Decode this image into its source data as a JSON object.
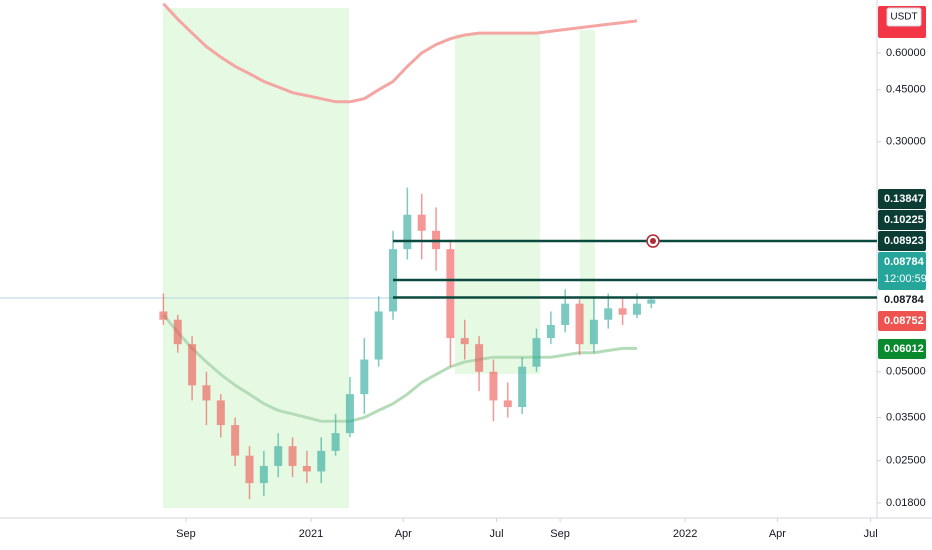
{
  "chart_data": {
    "type": "candlestick",
    "currency": "USDT",
    "log_scale": true,
    "ylim": [
      0.016,
      0.906
    ],
    "yticks": [
      {
        "value": 0.018,
        "label": "0.01800"
      },
      {
        "value": 0.025,
        "label": "0.02500"
      },
      {
        "value": 0.035,
        "label": "0.03500"
      },
      {
        "value": 0.05,
        "label": "0.05000"
      },
      {
        "value": 0.3,
        "label": "0.30000"
      },
      {
        "value": 0.45,
        "label": "0.45000"
      },
      {
        "value": 0.6,
        "label": "0.60000"
      }
    ],
    "xticks": [
      {
        "value": "2020-09-01",
        "label": "Sep"
      },
      {
        "value": "2021-01-01",
        "label": "2021"
      },
      {
        "value": "2021-04-01",
        "label": "Apr"
      },
      {
        "value": "2021-07-01",
        "label": "Jul"
      },
      {
        "value": "2021-09-01",
        "label": "Sep"
      },
      {
        "value": "2022-01-01",
        "label": "2022"
      },
      {
        "value": "2022-04-01",
        "label": "Apr"
      },
      {
        "value": "2022-07-01",
        "label": "Jul"
      }
    ],
    "up_color": "#26a69a",
    "down_color": "#ef5350",
    "candles": [
      {
        "x": "2020-08-10",
        "open": 0.08,
        "high": 0.092,
        "low": 0.072,
        "close": 0.075
      },
      {
        "x": "2020-08-24",
        "open": 0.075,
        "high": 0.078,
        "low": 0.058,
        "close": 0.062
      },
      {
        "x": "2020-09-07",
        "open": 0.062,
        "high": 0.066,
        "low": 0.04,
        "close": 0.045
      },
      {
        "x": "2020-09-21",
        "open": 0.045,
        "high": 0.05,
        "low": 0.033,
        "close": 0.04
      },
      {
        "x": "2020-10-05",
        "open": 0.04,
        "high": 0.042,
        "low": 0.03,
        "close": 0.033
      },
      {
        "x": "2020-10-19",
        "open": 0.033,
        "high": 0.035,
        "low": 0.024,
        "close": 0.026
      },
      {
        "x": "2020-11-02",
        "open": 0.026,
        "high": 0.028,
        "low": 0.0185,
        "close": 0.021
      },
      {
        "x": "2020-11-16",
        "open": 0.021,
        "high": 0.027,
        "low": 0.019,
        "close": 0.024
      },
      {
        "x": "2020-11-30",
        "open": 0.024,
        "high": 0.031,
        "low": 0.022,
        "close": 0.028
      },
      {
        "x": "2020-12-14",
        "open": 0.028,
        "high": 0.03,
        "low": 0.022,
        "close": 0.024
      },
      {
        "x": "2020-12-28",
        "open": 0.024,
        "high": 0.027,
        "low": 0.021,
        "close": 0.023
      },
      {
        "x": "2021-01-11",
        "open": 0.023,
        "high": 0.03,
        "low": 0.021,
        "close": 0.027
      },
      {
        "x": "2021-01-25",
        "open": 0.027,
        "high": 0.036,
        "low": 0.026,
        "close": 0.031
      },
      {
        "x": "2021-02-08",
        "open": 0.031,
        "high": 0.048,
        "low": 0.03,
        "close": 0.042
      },
      {
        "x": "2021-02-22",
        "open": 0.042,
        "high": 0.065,
        "low": 0.036,
        "close": 0.055
      },
      {
        "x": "2021-03-08",
        "open": 0.055,
        "high": 0.09,
        "low": 0.052,
        "close": 0.08
      },
      {
        "x": "2021-03-22",
        "open": 0.08,
        "high": 0.15,
        "low": 0.075,
        "close": 0.13
      },
      {
        "x": "2021-04-05",
        "open": 0.13,
        "high": 0.21,
        "low": 0.12,
        "close": 0.17
      },
      {
        "x": "2021-04-19",
        "open": 0.17,
        "high": 0.2,
        "low": 0.12,
        "close": 0.15
      },
      {
        "x": "2021-05-03",
        "open": 0.15,
        "high": 0.18,
        "low": 0.11,
        "close": 0.13
      },
      {
        "x": "2021-05-17",
        "open": 0.13,
        "high": 0.14,
        "low": 0.052,
        "close": 0.065
      },
      {
        "x": "2021-05-31",
        "open": 0.065,
        "high": 0.075,
        "low": 0.055,
        "close": 0.062
      },
      {
        "x": "2021-06-14",
        "open": 0.062,
        "high": 0.066,
        "low": 0.043,
        "close": 0.05
      },
      {
        "x": "2021-06-28",
        "open": 0.05,
        "high": 0.055,
        "low": 0.034,
        "close": 0.04
      },
      {
        "x": "2021-07-12",
        "open": 0.04,
        "high": 0.046,
        "low": 0.035,
        "close": 0.038
      },
      {
        "x": "2021-07-26",
        "open": 0.038,
        "high": 0.056,
        "low": 0.036,
        "close": 0.052
      },
      {
        "x": "2021-08-09",
        "open": 0.052,
        "high": 0.07,
        "low": 0.05,
        "close": 0.065
      },
      {
        "x": "2021-08-23",
        "open": 0.065,
        "high": 0.08,
        "low": 0.062,
        "close": 0.072
      },
      {
        "x": "2021-09-06",
        "open": 0.072,
        "high": 0.095,
        "low": 0.068,
        "close": 0.085
      },
      {
        "x": "2021-09-20",
        "open": 0.085,
        "high": 0.088,
        "low": 0.057,
        "close": 0.062
      },
      {
        "x": "2021-10-04",
        "open": 0.062,
        "high": 0.09,
        "low": 0.058,
        "close": 0.075
      },
      {
        "x": "2021-10-18",
        "open": 0.075,
        "high": 0.092,
        "low": 0.07,
        "close": 0.082
      },
      {
        "x": "2021-11-01",
        "open": 0.082,
        "high": 0.09,
        "low": 0.072,
        "close": 0.078
      },
      {
        "x": "2021-11-15",
        "open": 0.078,
        "high": 0.092,
        "low": 0.076,
        "close": 0.085
      },
      {
        "x": "2021-11-29",
        "open": 0.085,
        "high": 0.09,
        "low": 0.082,
        "close": 0.08784
      }
    ],
    "moving_averages": [
      {
        "color": "#f4a6a3",
        "values": [
          0.88,
          0.78,
          0.7,
          0.63,
          0.58,
          0.54,
          0.51,
          0.48,
          0.46,
          0.44,
          0.43,
          0.42,
          0.41,
          0.41,
          0.42,
          0.45,
          0.48,
          0.54,
          0.6,
          0.64,
          0.67,
          0.69,
          0.7,
          0.7,
          0.7,
          0.7,
          0.7,
          0.71,
          0.72,
          0.73,
          0.74,
          0.75,
          0.76,
          0.77,
          null
        ]
      },
      {
        "color": "#b5dcb8",
        "values": [
          0.078,
          0.068,
          0.06,
          0.054,
          0.049,
          0.045,
          0.042,
          0.039,
          0.037,
          0.036,
          0.035,
          0.034,
          0.034,
          0.034,
          0.035,
          0.037,
          0.039,
          0.042,
          0.046,
          0.049,
          0.052,
          0.054,
          0.055,
          0.056,
          0.056,
          0.056,
          0.056,
          0.056,
          0.057,
          0.058,
          0.058,
          0.059,
          0.06,
          0.06,
          null
        ]
      }
    ],
    "horizontal_lines": {
      "color": "#0b4a3f",
      "values": [
        0.13847,
        0.10225,
        0.08923
      ]
    },
    "price_labels": [
      {
        "value": 0.13847,
        "color": "#0b3d35"
      },
      {
        "value": 0.10225,
        "color": "#0b3d35"
      },
      {
        "value": 0.08923,
        "color": "#0b3d35"
      },
      {
        "value": 0.08784,
        "color": "#26a69a",
        "countdown": "12:00:59"
      },
      {
        "value": 0.08784,
        "color": "#ffffff"
      },
      {
        "value": 0.08752,
        "color": "#ef5350"
      },
      {
        "value": 0.06012,
        "color": "#0a8a2e"
      }
    ]
  }
}
